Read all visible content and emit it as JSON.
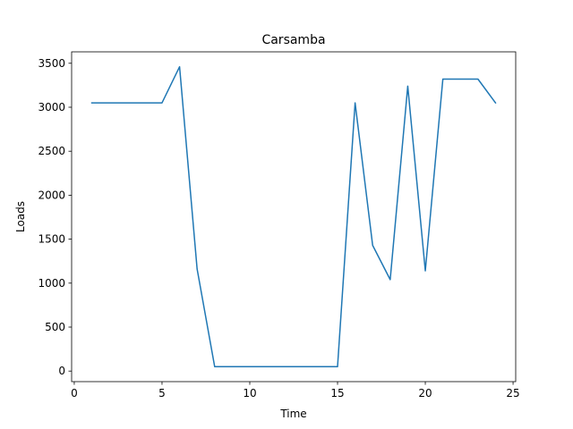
{
  "chart_data": {
    "type": "line",
    "title": "Carsamba",
    "xlabel": "Time",
    "ylabel": "Loads",
    "xlim": [
      0,
      25
    ],
    "ylim": [
      0,
      3500
    ],
    "xticks": [
      0,
      5,
      10,
      15,
      20,
      25
    ],
    "yticks": [
      0,
      500,
      1000,
      1500,
      2000,
      2500,
      3000,
      3500
    ],
    "grid": false,
    "series": [
      {
        "color": "#1f77b4",
        "x": [
          1,
          2,
          3,
          4,
          5,
          6,
          7,
          8,
          9,
          10,
          11,
          12,
          13,
          14,
          15,
          16,
          17,
          18,
          19,
          20,
          21,
          22,
          23,
          24
        ],
        "y": [
          3050,
          3050,
          3050,
          3050,
          3050,
          3460,
          1160,
          50,
          50,
          50,
          50,
          50,
          50,
          50,
          50,
          3050,
          1430,
          1040,
          3240,
          1140,
          3320,
          3320,
          3320,
          3050
        ]
      }
    ]
  }
}
